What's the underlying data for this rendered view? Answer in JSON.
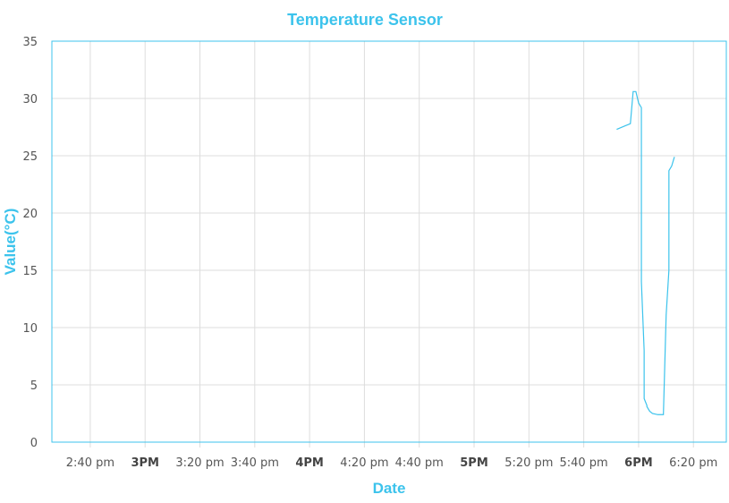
{
  "chart_data": {
    "type": "line",
    "title": "Temperature Sensor",
    "xlabel": "Date",
    "ylabel": "Value(°C)",
    "ylim": [
      0,
      35
    ],
    "xlim": [
      "2:26 pm",
      "6:32 pm"
    ],
    "grid": true,
    "legend": "none",
    "colors": {
      "title": "#3cc3ec",
      "series": "#3cc3ec",
      "frame": "#3cc3ec",
      "grid": "#dddddd"
    },
    "y_ticks": [
      "0",
      "5",
      "10",
      "15",
      "20",
      "25",
      "30",
      "35"
    ],
    "x_ticks": [
      {
        "time": "2:40 pm",
        "label": "2:40 pm",
        "major": false
      },
      {
        "time": "3:00 pm",
        "label": "3PM",
        "major": true
      },
      {
        "time": "3:20 pm",
        "label": "3:20 pm",
        "major": false
      },
      {
        "time": "3:40 pm",
        "label": "3:40 pm",
        "major": false
      },
      {
        "time": "4:00 pm",
        "label": "4PM",
        "major": true
      },
      {
        "time": "4:20 pm",
        "label": "4:20 pm",
        "major": false
      },
      {
        "time": "4:40 pm",
        "label": "4:40 pm",
        "major": false
      },
      {
        "time": "5:00 pm",
        "label": "5PM",
        "major": true
      },
      {
        "time": "5:20 pm",
        "label": "5:20 pm",
        "major": false
      },
      {
        "time": "5:40 pm",
        "label": "5:40 pm",
        "major": false
      },
      {
        "time": "6:00 pm",
        "label": "6PM",
        "major": true
      },
      {
        "time": "6:20 pm",
        "label": "6:20 pm",
        "major": false
      }
    ],
    "series": [
      {
        "x": [
          "5:52 pm",
          "5:55 pm",
          "5:57 pm",
          "5:58 pm",
          "5:59 pm",
          "6:00 pm",
          "6:01 pm",
          "6:01 pm",
          "6:02 pm",
          "6:02 pm",
          "6:02 pm",
          "6:03 pm",
          "6:03 pm",
          "6:04 pm",
          "6:05 pm",
          "6:07 pm",
          "6:09 pm",
          "6:10 pm",
          "6:10 pm",
          "6:11 pm",
          "6:11 pm",
          "6:12 pm",
          "6:13 pm"
        ],
        "values": [
          27.3,
          27.6,
          27.8,
          30.6,
          30.6,
          29.6,
          29.2,
          14.0,
          8.0,
          5.0,
          3.8,
          3.2,
          3.1,
          2.7,
          2.5,
          2.4,
          2.4,
          11.1,
          11.1,
          15.0,
          23.7,
          24.1,
          24.9
        ]
      }
    ]
  }
}
